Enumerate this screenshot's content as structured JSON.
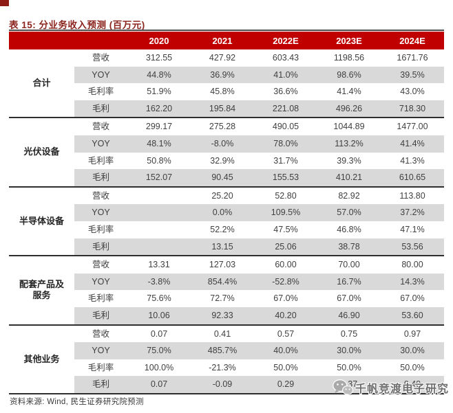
{
  "title": "表 15: 分业务收入预测 (百万元)",
  "header": {
    "years": [
      "2020",
      "2021",
      "2022E",
      "2023E",
      "2024E"
    ]
  },
  "groups": [
    {
      "name": "合计",
      "metrics": [
        {
          "label": "营收",
          "values": [
            "312.55",
            "427.92",
            "603.43",
            "1198.56",
            "1671.76"
          ]
        },
        {
          "label": "YOY",
          "values": [
            "44.8%",
            "36.9%",
            "41.0%",
            "98.6%",
            "39.5%"
          ]
        },
        {
          "label": "毛利率",
          "values": [
            "51.9%",
            "45.8%",
            "36.6%",
            "41.4%",
            "43.0%"
          ]
        },
        {
          "label": "毛利",
          "values": [
            "162.20",
            "195.84",
            "221.08",
            "496.26",
            "718.30"
          ]
        }
      ]
    },
    {
      "name": "光伏设备",
      "metrics": [
        {
          "label": "营收",
          "values": [
            "299.17",
            "275.28",
            "490.05",
            "1044.89",
            "1477.00"
          ]
        },
        {
          "label": "YOY",
          "values": [
            "48.1%",
            "-8.0%",
            "78.0%",
            "113.2%",
            "41.4%"
          ]
        },
        {
          "label": "毛利率",
          "values": [
            "50.8%",
            "32.9%",
            "31.7%",
            "39.3%",
            "41.3%"
          ]
        },
        {
          "label": "毛利",
          "values": [
            "152.07",
            "90.45",
            "155.53",
            "410.21",
            "610.65"
          ]
        }
      ]
    },
    {
      "name": "半导体设备",
      "metrics": [
        {
          "label": "营收",
          "values": [
            "",
            "25.20",
            "52.80",
            "82.92",
            "113.80"
          ]
        },
        {
          "label": "YOY",
          "values": [
            "",
            "0.0%",
            "109.5%",
            "57.0%",
            "37.2%"
          ]
        },
        {
          "label": "毛利率",
          "values": [
            "",
            "52.2%",
            "47.5%",
            "46.8%",
            "47.1%"
          ]
        },
        {
          "label": "毛利",
          "values": [
            "",
            "13.15",
            "25.06",
            "38.78",
            "53.56"
          ]
        }
      ]
    },
    {
      "name": "配套产品及服务",
      "metrics": [
        {
          "label": "营收",
          "values": [
            "13.31",
            "127.03",
            "60.00",
            "70.00",
            "80.00"
          ]
        },
        {
          "label": "YOY",
          "values": [
            "-3.8%",
            "854.4%",
            "-52.8%",
            "16.7%",
            "14.3%"
          ]
        },
        {
          "label": "毛利率",
          "values": [
            "75.6%",
            "72.7%",
            "67.0%",
            "67.0%",
            "67.0%"
          ]
        },
        {
          "label": "毛利",
          "values": [
            "10.06",
            "92.33",
            "40.20",
            "46.90",
            "53.60"
          ]
        }
      ]
    },
    {
      "name": "其他业务",
      "metrics": [
        {
          "label": "营收",
          "values": [
            "0.07",
            "0.41",
            "0.57",
            "0.75",
            "0.97"
          ]
        },
        {
          "label": "YOY",
          "values": [
            "75.0%",
            "485.7%",
            "40.0%",
            "30.0%",
            "30.0%"
          ]
        },
        {
          "label": "毛利率",
          "values": [
            "100.0%",
            "-21.3%",
            "50.0%",
            "50.0%",
            "50.0%"
          ]
        },
        {
          "label": "毛利",
          "values": [
            "0.07",
            "-0.09",
            "0.29",
            "0.37",
            "0.49"
          ]
        }
      ]
    }
  ],
  "footer": {
    "source": "资料来源: Wind, 民生证券研究院预测"
  },
  "watermark": {
    "text": "千帆竞渡电子研究",
    "icon": "wechat-icon"
  },
  "colors": {
    "header_band": "#c00000",
    "stripe": "#d9d9d9",
    "title_red": "#8b241d",
    "separator": "#2e2e2e"
  }
}
